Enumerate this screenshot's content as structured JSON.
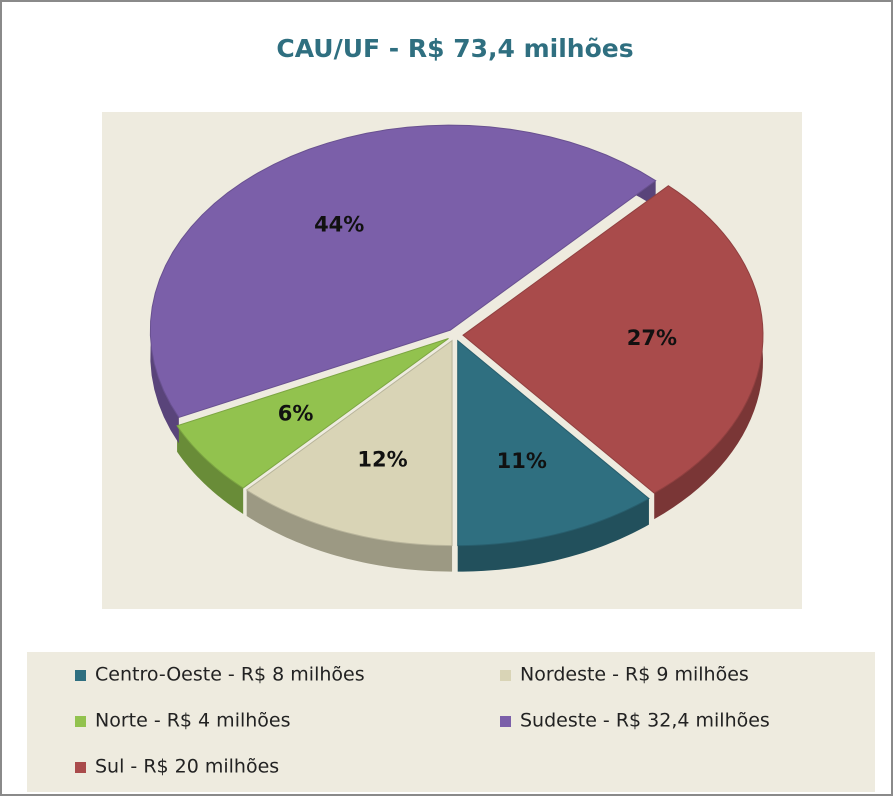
{
  "chart_data": {
    "type": "pie",
    "title": "CAU/UF - R$ 73,4 milhões",
    "categories": [
      "Centro-Oeste - R$ 8 milhões",
      "Nordeste - R$ 9 milhões",
      "Norte - R$ 4 milhões",
      "Sudeste - R$ 32,4 milhões",
      "Sul - R$ 20 milhões"
    ],
    "values": [
      11,
      12,
      6,
      44,
      27
    ],
    "value_labels": [
      "11%",
      "12%",
      "6%",
      "44%",
      "27%"
    ],
    "colors": [
      "#2f6f80",
      "#d9d4b6",
      "#92c24e",
      "#7b5fa9",
      "#a94b4b"
    ],
    "legend": "bottom"
  }
}
